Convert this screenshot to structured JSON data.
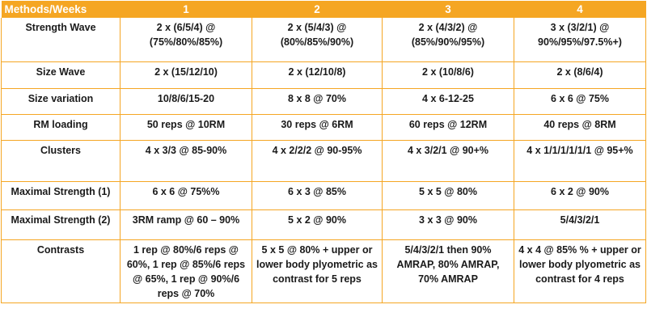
{
  "header": {
    "methods_weeks": "Methods/Weeks",
    "weeks": [
      "1",
      "2",
      "3",
      "4"
    ]
  },
  "rows": [
    {
      "method": "Strength Wave",
      "w1": "2 x (6/5/4) @ (75%/80%/85%)",
      "w2": "2 x (5/4/3) @ (80%/85%/90%)",
      "w3": "2 x (4/3/2) @ (85%/90%/95%)",
      "w4": "3 x (3/2/1) @ 90%/95%/97.5%+)"
    },
    {
      "method": "Size Wave",
      "w1": "2 x (15/12/10)",
      "w2": "2 x (12/10/8)",
      "w3": "2 x (10/8/6)",
      "w4": "2 x (8/6/4)"
    },
    {
      "method": "Size variation",
      "w1": "10/8/6/15-20",
      "w2": "8 x 8 @ 70%",
      "w3": "4 x 6-12-25",
      "w4": "6 x 6 @ 75%"
    },
    {
      "method": "RM loading",
      "w1": "50 reps @ 10RM",
      "w2": "30 reps @ 6RM",
      "w3": "60 reps @ 12RM",
      "w4": "40 reps @ 8RM"
    },
    {
      "method": "Clusters",
      "w1": "4 x 3/3 @ 85-90%",
      "w2": "4 x 2/2/2 @ 90-95%",
      "w3": "4 x 3/2/1 @ 90+%",
      "w4": "4 x 1/1/1/1/1/1 @ 95+%"
    },
    {
      "method": "Maximal Strength (1)",
      "w1": "6 x 6 @ 75%%",
      "w2": "6 x 3 @ 85%",
      "w3": "5 x 5 @ 80%",
      "w4": "6 x 2 @ 90%"
    },
    {
      "method": "Maximal Strength (2)",
      "w1": "3RM ramp @ 60 – 90%",
      "w2": "5 x 2 @ 90%",
      "w3": "3 x 3 @ 90%",
      "w4": "5/4/3/2/1"
    },
    {
      "method": "Contrasts",
      "w1": "1 rep @ 80%/6 reps @ 60%, 1 rep @ 85%/6 reps @ 65%, 1 rep @ 90%/6 reps @ 70%",
      "w2": "5 x 5 @ 80% + upper or lower body plyometric as contrast for 5 reps",
      "w3": "5/4/3/2/1 then 90% AMRAP, 80% AMRAP, 70% AMRAP",
      "w4": "4 x 4 @ 85% % + upper or lower body plyometric as contrast for 4 reps"
    }
  ],
  "colors": {
    "header_bg": "#f5a623",
    "header_text": "#ffffff",
    "grid": "#f5a623",
    "text": "#1a1a1a"
  }
}
